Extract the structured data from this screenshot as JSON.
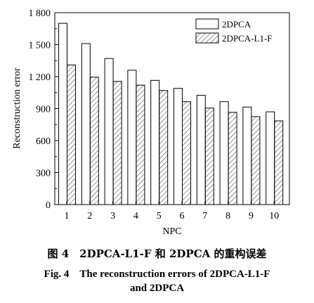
{
  "chart_data": {
    "type": "bar",
    "xlabel": "NPC",
    "ylabel": "Reconstruction error",
    "ylim": [
      0,
      1800
    ],
    "yticks": [
      "0",
      "300",
      "600",
      "900",
      "1 200",
      "1 500",
      "1 800"
    ],
    "categories": [
      "1",
      "2",
      "3",
      "4",
      "5",
      "6",
      "7",
      "8",
      "9",
      "10"
    ],
    "series": [
      {
        "name": "2DPCA",
        "fill": "plain",
        "values": [
          1700,
          1510,
          1370,
          1260,
          1165,
          1090,
          1025,
          965,
          915,
          870
        ]
      },
      {
        "name": "2DPCA-L1-F",
        "fill": "hatched",
        "values": [
          1310,
          1195,
          1155,
          1120,
          1070,
          965,
          905,
          865,
          825,
          785
        ]
      }
    ],
    "legend_position": "top-right",
    "grid": false
  },
  "caption": {
    "cn": "图 4　2DPCA-L1-F 和 2DPCA 的重构误差",
    "en_line1": "Fig. 4　The reconstruction errors of 2DPCA-L1-F",
    "en_line2": "and 2DPCA"
  }
}
